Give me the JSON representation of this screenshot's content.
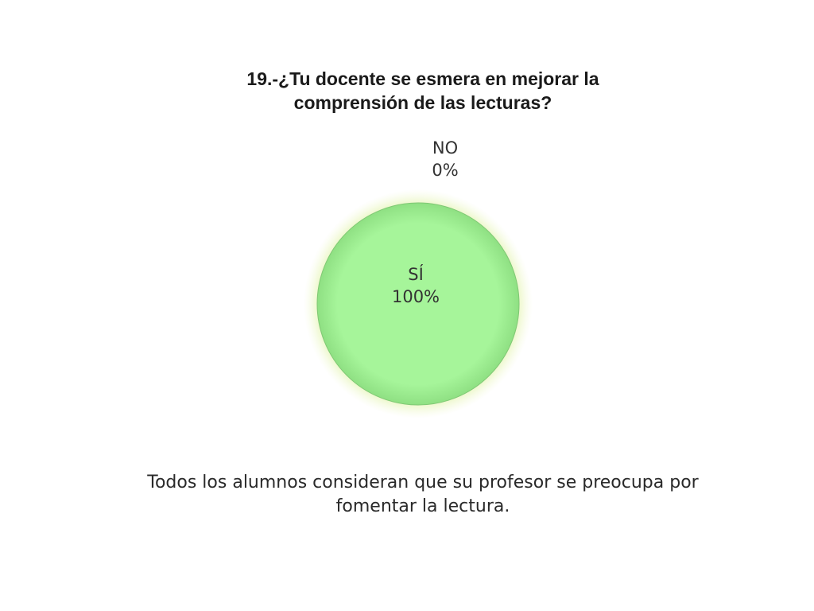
{
  "chart_data": {
    "type": "pie",
    "title": [
      "19.-¿Tu docente se esmera en mejorar la",
      "comprensión de las lecturas?"
    ],
    "slices": [
      {
        "label": "SÍ",
        "value": 100,
        "value_label": "100%",
        "color": "#a6f59a"
      },
      {
        "label": "NO",
        "value": 0,
        "value_label": "0%",
        "color": "#f0f0f0"
      }
    ]
  },
  "conclusion": {
    "lines": [
      "Todos los alumnos consideran que su profesor se preocupa por",
      "fomentar la lectura."
    ]
  }
}
